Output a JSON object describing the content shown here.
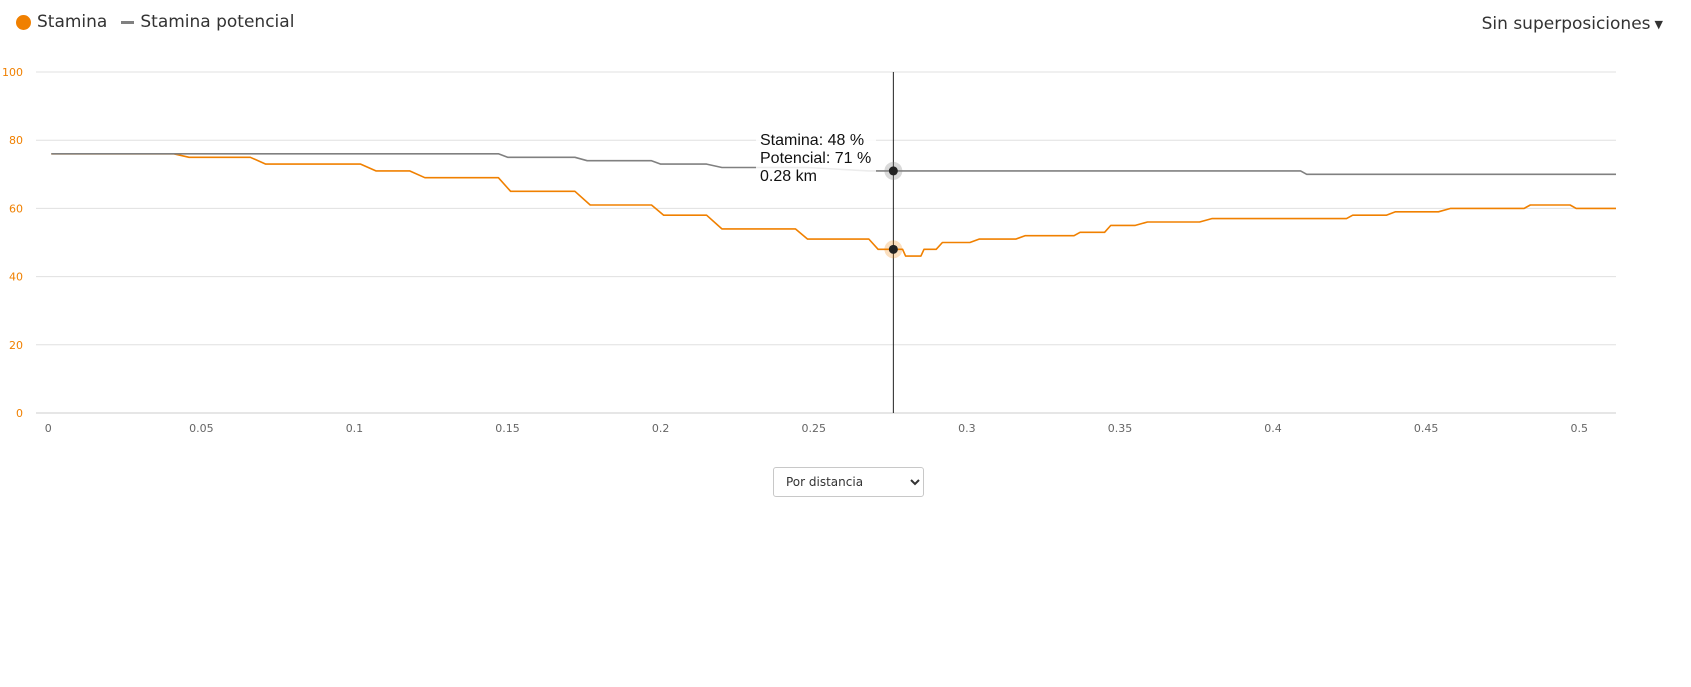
{
  "legend": {
    "stamina_label": "Stamina",
    "potential_label": "Stamina potencial"
  },
  "overlay_menu": {
    "label": "Sin superposiciones"
  },
  "dropdown": {
    "selected": "Por distancia"
  },
  "colors": {
    "stamina": "#f08000",
    "potential": "#808080",
    "grid": "#e0e0e0",
    "y_tick": "#f08000",
    "x_tick": "#666666",
    "crosshair": "#222222"
  },
  "tooltip": {
    "line1": "Stamina: 48 %",
    "line2": "Potencial: 71 %",
    "line3": "0.28 km",
    "x": 0.276
  },
  "chart_data": {
    "type": "line",
    "xlim": [
      -0.004,
      0.512
    ],
    "ylim": [
      0,
      100
    ],
    "x_ticks": [
      0,
      0.05,
      0.1,
      0.15,
      0.2,
      0.25,
      0.3,
      0.35,
      0.4,
      0.45,
      0.5
    ],
    "y_ticks": [
      0,
      20,
      40,
      60,
      80,
      100
    ],
    "grid": true,
    "legend_position": "top-left",
    "series": [
      {
        "name": "Stamina",
        "points": [
          [
            0.001,
            76
          ],
          [
            0.041,
            76
          ],
          [
            0.046,
            75
          ],
          [
            0.066,
            75
          ],
          [
            0.071,
            73
          ],
          [
            0.102,
            73
          ],
          [
            0.107,
            71
          ],
          [
            0.118,
            71
          ],
          [
            0.123,
            69
          ],
          [
            0.147,
            69
          ],
          [
            0.151,
            65
          ],
          [
            0.172,
            65
          ],
          [
            0.177,
            61
          ],
          [
            0.197,
            61
          ],
          [
            0.201,
            58
          ],
          [
            0.215,
            58
          ],
          [
            0.22,
            54
          ],
          [
            0.244,
            54
          ],
          [
            0.248,
            51
          ],
          [
            0.268,
            51
          ],
          [
            0.271,
            48
          ],
          [
            0.276,
            48
          ],
          [
            0.279,
            48
          ],
          [
            0.28,
            46
          ],
          [
            0.285,
            46
          ],
          [
            0.286,
            48
          ],
          [
            0.29,
            48
          ],
          [
            0.292,
            50
          ],
          [
            0.301,
            50
          ],
          [
            0.304,
            51
          ],
          [
            0.316,
            51
          ],
          [
            0.319,
            52
          ],
          [
            0.335,
            52
          ],
          [
            0.337,
            53
          ],
          [
            0.345,
            53
          ],
          [
            0.347,
            55
          ],
          [
            0.355,
            55
          ],
          [
            0.359,
            56
          ],
          [
            0.376,
            56
          ],
          [
            0.38,
            57
          ],
          [
            0.424,
            57
          ],
          [
            0.426,
            58
          ],
          [
            0.437,
            58
          ],
          [
            0.44,
            59
          ],
          [
            0.454,
            59
          ],
          [
            0.458,
            60
          ],
          [
            0.482,
            60
          ],
          [
            0.484,
            61
          ],
          [
            0.497,
            61
          ],
          [
            0.499,
            60
          ],
          [
            0.512,
            60
          ]
        ]
      },
      {
        "name": "Stamina potencial",
        "points": [
          [
            0.001,
            76
          ],
          [
            0.147,
            76
          ],
          [
            0.15,
            75
          ],
          [
            0.172,
            75
          ],
          [
            0.176,
            74
          ],
          [
            0.197,
            74
          ],
          [
            0.2,
            73
          ],
          [
            0.215,
            73
          ],
          [
            0.22,
            72
          ],
          [
            0.244,
            72
          ],
          [
            0.248,
            72
          ],
          [
            0.268,
            71
          ],
          [
            0.276,
            71
          ],
          [
            0.409,
            71
          ],
          [
            0.411,
            70
          ],
          [
            0.512,
            70
          ]
        ]
      }
    ]
  }
}
